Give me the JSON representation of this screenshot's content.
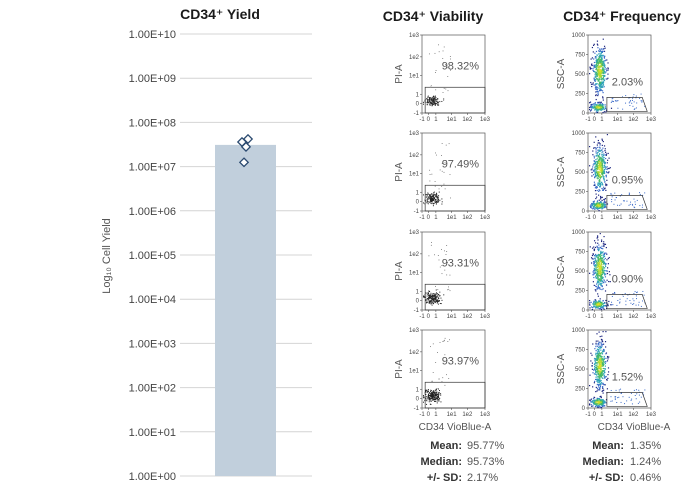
{
  "chart_data": [
    {
      "type": "bar",
      "title": "CD34⁺ Yield",
      "ylabel": "Log₁₀ Cell Yield",
      "yscale": "log",
      "ylim": [
        1,
        10000000000
      ],
      "yticks": [
        1,
        10,
        100,
        1000,
        10000,
        100000,
        1000000,
        10000000,
        100000000,
        1000000000,
        10000000000
      ],
      "ytick_labels": [
        "1.00E+00",
        "1.00E+01",
        "1.00E+02",
        "1.00E+03",
        "1.00E+04",
        "1.00E+05",
        "1.00E+06",
        "1.00E+07",
        "1.00E+08",
        "1.00E+09",
        "1.00E+10"
      ],
      "bar_value": 31000000,
      "points": [
        42000000,
        36000000,
        28000000,
        12500000
      ],
      "bar_color": "#c1cfdc",
      "point_color": "#2b4a70",
      "grid": true
    },
    {
      "type": "scatter",
      "title": "CD34⁺ Viability",
      "xlabel": "CD34 VioBlue-A",
      "ylabel": "PI-A",
      "x_tick_labels": [
        "-1",
        "0",
        "1",
        "1e1",
        "1e2",
        "1e3"
      ],
      "y_tick_labels": [
        "1e3",
        "1e2",
        "1e1",
        "1",
        "0",
        "-1"
      ],
      "panels": [
        {
          "percent": "98.32%"
        },
        {
          "percent": "97.49%"
        },
        {
          "percent": "93.31%"
        },
        {
          "percent": "93.97%"
        }
      ],
      "stats": [
        {
          "label": "Mean:",
          "value": "95.77%"
        },
        {
          "label": "Median:",
          "value": "95.73%"
        },
        {
          "label": "+/- SD:",
          "value": "2.17%"
        }
      ]
    },
    {
      "type": "scatter",
      "title": "CD34⁺ Frequency",
      "xlabel": "CD34 VioBlue-A",
      "ylabel": "SSC-A",
      "x_tick_labels": [
        "-1",
        "0",
        "1",
        "1e1",
        "1e2",
        "1e3"
      ],
      "y_tick_labels": [
        "1000",
        "750",
        "500",
        "250",
        "0"
      ],
      "panels": [
        {
          "percent": "2.03%"
        },
        {
          "percent": "0.95%"
        },
        {
          "percent": "0.90%"
        },
        {
          "percent": "1.52%"
        }
      ],
      "stats": [
        {
          "label": "Mean:",
          "value": "1.35%"
        },
        {
          "label": "Median:",
          "value": "1.24%"
        },
        {
          "label": "+/- SD:",
          "value": "0.46%"
        }
      ]
    }
  ]
}
